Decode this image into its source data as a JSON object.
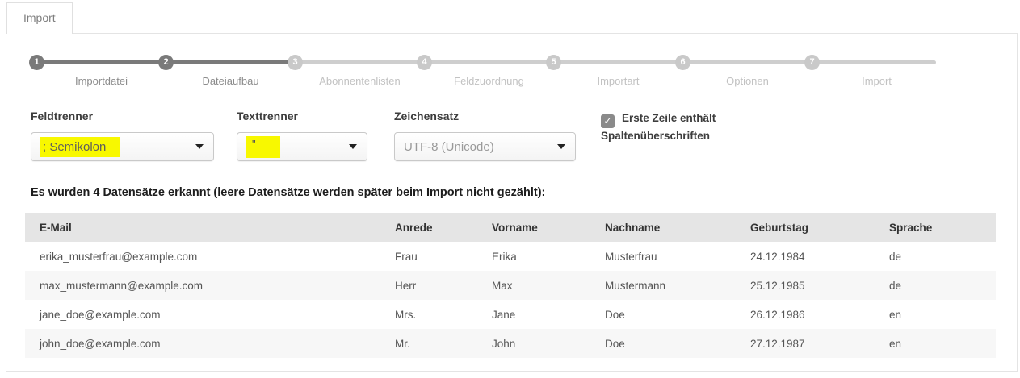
{
  "tab": {
    "label": "Import"
  },
  "stepper": {
    "steps": [
      {
        "number": "1",
        "label": "Importdatei",
        "state": "active"
      },
      {
        "number": "2",
        "label": "Dateiaufbau",
        "state": "active"
      },
      {
        "number": "3",
        "label": "Abonnentenlisten",
        "state": "inactive"
      },
      {
        "number": "4",
        "label": "Feldzuordnung",
        "state": "inactive"
      },
      {
        "number": "5",
        "label": "Importart",
        "state": "inactive"
      },
      {
        "number": "6",
        "label": "Optionen",
        "state": "inactive"
      },
      {
        "number": "7",
        "label": "Import",
        "state": "inactive"
      }
    ]
  },
  "form": {
    "feldtrenner": {
      "label": "Feldtrenner",
      "value": "; Semikolon",
      "highlighted": true
    },
    "texttrenner": {
      "label": "Texttrenner",
      "value": "\"",
      "highlighted": true
    },
    "zeichensatz": {
      "label": "Zeichensatz",
      "value": "UTF-8 (Unicode)",
      "highlighted": false
    },
    "header_checkbox": {
      "label": "Erste Zeile enthält Spaltenüberschriften",
      "checked": true
    }
  },
  "icons": {
    "check": "✓",
    "chevron_down": "▼"
  },
  "summary": "Es wurden 4 Datensätze erkannt (leere Datensätze werden später beim Import nicht gezählt):",
  "table": {
    "columns": [
      "E-Mail",
      "Anrede",
      "Vorname",
      "Nachname",
      "Geburtstag",
      "Sprache"
    ],
    "rows": [
      [
        "erika_musterfrau@example.com",
        "Frau",
        "Erika",
        "Musterfrau",
        "24.12.1984",
        "de"
      ],
      [
        "max_mustermann@example.com",
        "Herr",
        "Max",
        "Mustermann",
        "25.12.1985",
        "de"
      ],
      [
        "jane_doe@example.com",
        "Mrs.",
        "Jane",
        "Doe",
        "26.12.1986",
        "en"
      ],
      [
        "john_doe@example.com",
        "Mr.",
        "John",
        "Doe",
        "27.12.1987",
        "en"
      ]
    ]
  },
  "colors": {
    "highlight": "#f8f800",
    "active_step": "#7a7a7a",
    "inactive_step": "#c9c9c9",
    "table_header_bg": "#e5e5e5",
    "zebra_row_bg": "#f7f7f7",
    "panel_border": "#e4e4e4"
  }
}
